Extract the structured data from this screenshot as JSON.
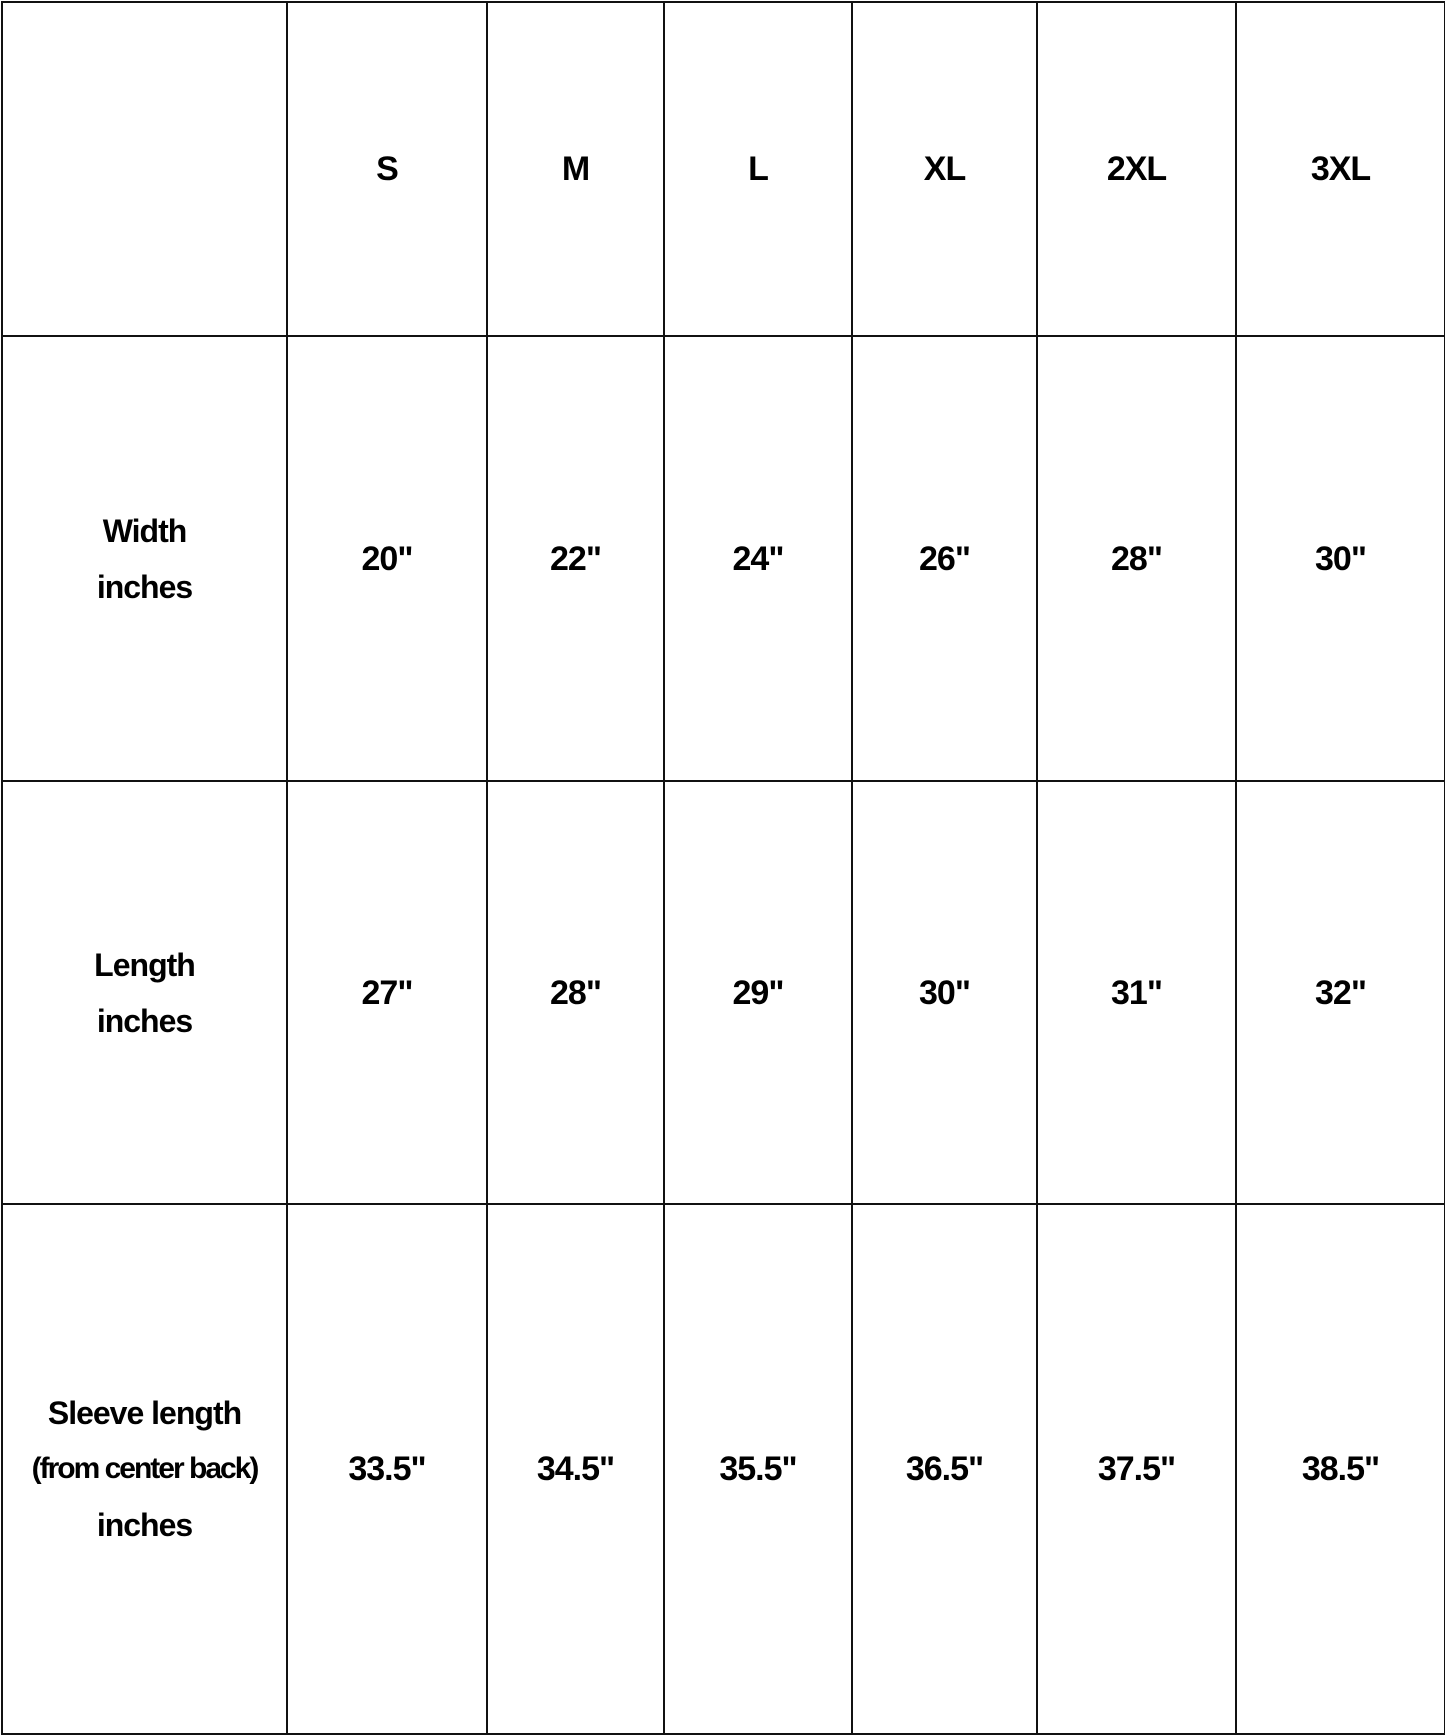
{
  "size_chart": {
    "corner": "",
    "sizes": [
      "S",
      "M",
      "L",
      "XL",
      "2XL",
      "3XL"
    ],
    "rows": [
      {
        "label_lines": [
          "Width",
          "inches"
        ],
        "values": [
          "20\"",
          "22\"",
          "24\"",
          "26\"",
          "28\"",
          "30\""
        ]
      },
      {
        "label_lines": [
          "Length",
          "inches"
        ],
        "values": [
          "27\"",
          "28\"",
          "29\"",
          "30\"",
          "31\"",
          "32\""
        ]
      },
      {
        "label_lines": [
          "Sleeve length",
          "(from center back)",
          "inches"
        ],
        "values": [
          "33.5\"",
          "34.5\"",
          "35.5\"",
          "36.5\"",
          "37.5\"",
          "38.5\""
        ]
      }
    ]
  }
}
